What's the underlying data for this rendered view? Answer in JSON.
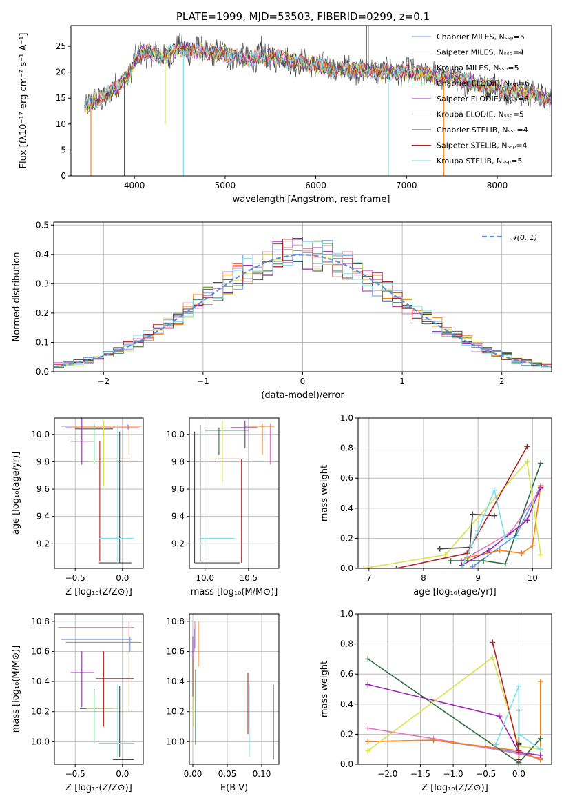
{
  "figure_title": "PLATE=1999, MJD=53503, FIBERID=0299, z=0.1",
  "series_colors": [
    "#6495ED",
    "#E377C2",
    "#FF7F0E",
    "#2E6B3E",
    "#9C27B0",
    "#D6E34A",
    "#444444",
    "#B22222",
    "#7FDDE6"
  ],
  "chart_data": [
    {
      "id": "spectrum",
      "type": "line",
      "title": "PLATE=1999, MJD=53503, FIBERID=0299, z=0.1",
      "xlabel": "wavelength [Angstrom, rest frame]",
      "ylabel": "Flux [fλ10⁻¹⁷ erg cm⁻² s⁻¹ A⁻¹]",
      "xlim": [
        3300,
        8600
      ],
      "ylim": [
        0,
        29
      ],
      "xticks": [
        "4000",
        "5000",
        "6000",
        "7000",
        "8000"
      ],
      "yticks": [
        "0",
        "5",
        "10",
        "15",
        "20",
        "25"
      ],
      "legend_position": "top-right",
      "legend": [
        "Chabrier MILES, N_SSP=5",
        "Salpeter MILES, N_SSP=4",
        "Kroupa MILES, N_SSP=5",
        "Chabrier ELODIE, N_SSP=6",
        "Salpeter ELODIE, N_SSP=6",
        "Kroupa ELODIE, N_SSP=5",
        "Chabrier STELIB, N_SSP=4",
        "Salpeter STELIB, N_SSP=4",
        "Kroupa STELIB, N_SSP=5"
      ],
      "continuum": [
        [
          3450,
          13.5
        ],
        [
          3600,
          14.5
        ],
        [
          3800,
          17
        ],
        [
          3950,
          19.5
        ],
        [
          4000,
          22
        ],
        [
          4100,
          24
        ],
        [
          4300,
          23
        ],
        [
          4500,
          24.5
        ],
        [
          4800,
          24
        ],
        [
          5000,
          23.5
        ],
        [
          5200,
          22.5
        ],
        [
          5500,
          23
        ],
        [
          5800,
          22
        ],
        [
          6000,
          21.5
        ],
        [
          6200,
          20.5
        ],
        [
          6500,
          20.5
        ],
        [
          6800,
          20
        ],
        [
          7000,
          20
        ],
        [
          7300,
          19.5
        ],
        [
          7600,
          18.5
        ],
        [
          8000,
          17
        ],
        [
          8300,
          16
        ],
        [
          8600,
          15
        ]
      ],
      "dropouts": [
        [
          3520,
          0
        ],
        [
          3890,
          0
        ],
        [
          4340,
          10
        ],
        [
          4540,
          0
        ],
        [
          6800,
          0
        ],
        [
          7410,
          0
        ]
      ],
      "spikes": [
        [
          5400,
          27
        ],
        [
          6560,
          29
        ],
        [
          6580,
          29
        ]
      ]
    },
    {
      "id": "residual-histogram",
      "type": "histogram",
      "xlabel": "(data-model)/error",
      "ylabel": "Normed distribution",
      "xlim": [
        -2.5,
        2.5
      ],
      "ylim": [
        0,
        0.51
      ],
      "xticks": [
        "−2",
        "−1",
        "0",
        "1",
        "2"
      ],
      "yticks": [
        "0.0",
        "0.1",
        "0.2",
        "0.3",
        "0.4",
        "0.5"
      ],
      "bin_width": 0.1,
      "reference_curve": "gaussian mean 0 sigma 1",
      "legend": [
        "𝒩(0, 1)"
      ],
      "legend_position": "top-right"
    },
    {
      "id": "age-vs-Z",
      "type": "errorbar",
      "xlabel": "Z [log₁₀(Z/Z⊙)]",
      "ylabel": "age  [log₁₀(age/yr)]",
      "xlim": [
        -0.72,
        0.22
      ],
      "ylim": [
        9.02,
        10.12
      ],
      "xticks": [
        "−0.5",
        "0.0"
      ],
      "yticks": [
        "9.2",
        "9.4",
        "9.6",
        "9.8",
        "10.0"
      ],
      "points": [
        {
          "x": 0.05,
          "y": 10.06,
          "xlo": -0.65,
          "xhi": 0.2,
          "ylo": 10.04,
          "yhi": 10.08
        },
        {
          "x": 0.06,
          "y": 10.05,
          "xlo": -0.6,
          "xhi": 0.18,
          "ylo": 10.03,
          "yhi": 10.07
        },
        {
          "x": 0.07,
          "y": 10.06,
          "xlo": -0.55,
          "xhi": 0.2,
          "ylo": 9.85,
          "yhi": 10.08
        },
        {
          "x": -0.3,
          "y": 10.04,
          "xlo": -0.5,
          "xhi": -0.1,
          "ylo": 9.78,
          "yhi": 10.08
        },
        {
          "x": -0.43,
          "y": 9.95,
          "xlo": -0.55,
          "xhi": -0.3,
          "ylo": 9.78,
          "yhi": 10.12
        },
        {
          "x": -0.2,
          "y": 9.8,
          "xlo": -0.35,
          "xhi": -0.05,
          "ylo": 9.62,
          "yhi": 10.1
        },
        {
          "x": -0.03,
          "y": 9.06,
          "xlo": -0.25,
          "xhi": 0.1,
          "ylo": 9.06,
          "yhi": 10.02
        },
        {
          "x": -0.24,
          "y": 9.82,
          "xlo": -0.24,
          "xhi": 0.08,
          "ylo": 9.07,
          "yhi": 9.95
        },
        {
          "x": -0.05,
          "y": 9.24,
          "xlo": -0.25,
          "xhi": 0.12,
          "ylo": 9.05,
          "yhi": 10.07
        }
      ]
    },
    {
      "id": "age-vs-mass",
      "type": "errorbar",
      "xlabel": "mass [log₁₀(M/M⊙)]",
      "xlim": [
        9.82,
        10.85
      ],
      "ylim": [
        9.02,
        10.12
      ],
      "xticks": [
        "10.0",
        "10.5"
      ],
      "yticks": [
        "9.2",
        "9.4",
        "9.6",
        "9.8",
        "10.0"
      ],
      "points": [
        {
          "x": 10.68,
          "y": 10.06,
          "xlo": 10.45,
          "xhi": 10.78,
          "ylo": 9.95,
          "yhi": 10.08
        },
        {
          "x": 10.75,
          "y": 10.06,
          "xlo": 10.6,
          "xhi": 10.77,
          "ylo": 9.78,
          "yhi": 10.08
        },
        {
          "x": 10.66,
          "y": 10.06,
          "xlo": 10.5,
          "xhi": 10.8,
          "ylo": 9.85,
          "yhi": 10.08
        },
        {
          "x": 10.16,
          "y": 10.03,
          "xlo": 10.0,
          "xhi": 10.5,
          "ylo": 9.85,
          "yhi": 10.05
        },
        {
          "x": 10.46,
          "y": 10.05,
          "xlo": 10.3,
          "xhi": 10.6,
          "ylo": 9.9,
          "yhi": 10.1
        },
        {
          "x": 10.2,
          "y": 9.82,
          "xlo": 10.05,
          "xhi": 10.35,
          "ylo": 9.65,
          "yhi": 10.1
        },
        {
          "x": 9.88,
          "y": 9.06,
          "xlo": 9.88,
          "xhi": 10.4,
          "ylo": 9.06,
          "yhi": 10.02
        },
        {
          "x": 10.42,
          "y": 9.82,
          "xlo": 10.12,
          "xhi": 10.45,
          "ylo": 9.06,
          "yhi": 9.82
        },
        {
          "x": 9.95,
          "y": 9.24,
          "xlo": 9.95,
          "xhi": 10.34,
          "ylo": 9.06,
          "yhi": 10.07
        }
      ]
    },
    {
      "id": "weight-vs-age",
      "type": "line",
      "xlabel": "age  [log₁₀(age/yr)]",
      "ylabel": "mass weight",
      "xlim": [
        6.8,
        10.35
      ],
      "ylim": [
        0,
        1
      ],
      "xticks": [
        "7",
        "8",
        "9",
        "10"
      ],
      "yticks": [
        "0.0",
        "0.2",
        "0.4",
        "0.6",
        "0.8",
        "1.0"
      ],
      "series": [
        {
          "values": [
            [
              8.9,
              0.01
            ],
            [
              9.7,
              0.22
            ],
            [
              10.15,
              0.55
            ]
          ]
        },
        {
          "values": [
            [
              8.7,
              0.05
            ],
            [
              9.6,
              0.24
            ],
            [
              10.15,
              0.53
            ]
          ]
        },
        {
          "values": [
            [
              8.8,
              0.07
            ],
            [
              9.4,
              0.12
            ],
            [
              9.8,
              0.1
            ],
            [
              10.0,
              0.15
            ],
            [
              10.15,
              0.55
            ]
          ]
        },
        {
          "values": [
            [
              8.5,
              0.05
            ],
            [
              9.1,
              0.05
            ],
            [
              9.5,
              0.03
            ],
            [
              10.15,
              0.7
            ]
          ]
        },
        {
          "values": [
            [
              8.7,
              0.02
            ],
            [
              9.2,
              0.12
            ],
            [
              9.9,
              0.32
            ],
            [
              10.15,
              0.54
            ]
          ]
        },
        {
          "values": [
            [
              6.9,
              0.0
            ],
            [
              8.4,
              0.09
            ],
            [
              9.9,
              0.71
            ],
            [
              10.15,
              0.09
            ]
          ]
        },
        {
          "values": [
            [
              8.3,
              0.13
            ],
            [
              8.85,
              0.14
            ],
            [
              8.9,
              0.36
            ],
            [
              9.3,
              0.35
            ]
          ]
        },
        {
          "values": [
            [
              7.5,
              0.0
            ],
            [
              8.8,
              0.1
            ],
            [
              9.9,
              0.81
            ]
          ]
        },
        {
          "values": [
            [
              8.7,
              0.0
            ],
            [
              9.0,
              0.25
            ],
            [
              9.3,
              0.52
            ],
            [
              9.5,
              0.2
            ],
            [
              9.7,
              0.2
            ]
          ]
        }
      ]
    },
    {
      "id": "mass-vs-Z",
      "type": "errorbar",
      "xlabel": "Z [log₁₀(Z/Z⊙)]",
      "ylabel": "mass [log₁₀(M/M⊙)]",
      "xlim": [
        -0.72,
        0.22
      ],
      "ylim": [
        9.85,
        10.85
      ],
      "xticks": [
        "−0.5",
        "0.0"
      ],
      "yticks": [
        "10.0",
        "10.2",
        "10.4",
        "10.6",
        "10.8"
      ],
      "points": [
        {
          "x": 0.08,
          "y": 10.68,
          "xlo": -0.65,
          "xhi": 0.1,
          "ylo": 10.6,
          "yhi": 10.7
        },
        {
          "x": 0.07,
          "y": 10.76,
          "xlo": -0.68,
          "xhi": 0.12,
          "ylo": 10.7,
          "yhi": 10.8
        },
        {
          "x": 0.07,
          "y": 10.66,
          "xlo": -0.6,
          "xhi": 0.2,
          "ylo": 10.2,
          "yhi": 10.8
        },
        {
          "x": -0.3,
          "y": 10.22,
          "xlo": -0.45,
          "xhi": -0.1,
          "ylo": 9.98,
          "yhi": 10.35
        },
        {
          "x": -0.43,
          "y": 10.46,
          "xlo": -0.55,
          "xhi": -0.3,
          "ylo": 10.23,
          "yhi": 10.6
        },
        {
          "x": -0.2,
          "y": 10.22,
          "xlo": -0.38,
          "xhi": -0.05,
          "ylo": 10.12,
          "yhi": 10.48
        },
        {
          "x": -0.03,
          "y": 9.88,
          "xlo": -0.1,
          "xhi": 0.12,
          "ylo": 9.9,
          "yhi": 10.37
        },
        {
          "x": -0.2,
          "y": 10.42,
          "xlo": -0.28,
          "xhi": 0.12,
          "ylo": 10.1,
          "yhi": 10.6
        },
        {
          "x": -0.05,
          "y": 9.99,
          "xlo": -0.25,
          "xhi": 0.12,
          "ylo": 9.9,
          "yhi": 10.38
        }
      ]
    },
    {
      "id": "mass-vs-EBV",
      "type": "errorbar",
      "xlabel": "E(B-V)",
      "xlim": [
        -0.005,
        0.125
      ],
      "ylim": [
        9.85,
        10.85
      ],
      "xticks": [
        "0.00",
        "0.05",
        "0.10"
      ],
      "yticks": [
        "10.0",
        "10.2",
        "10.4",
        "10.6",
        "10.8"
      ],
      "points": [
        {
          "x": 0.002,
          "y": 10.68,
          "ylo": 10.6,
          "yhi": 10.75
        },
        {
          "x": 0.003,
          "y": 10.76,
          "ylo": 10.62,
          "yhi": 10.8
        },
        {
          "x": 0.008,
          "y": 10.66,
          "ylo": 10.5,
          "yhi": 10.8
        },
        {
          "x": 0.004,
          "y": 10.22,
          "ylo": 9.98,
          "yhi": 10.48
        },
        {
          "x": 0.0,
          "y": 10.46,
          "ylo": 10.3,
          "yhi": 10.7
        },
        {
          "x": 0.001,
          "y": 10.22,
          "ylo": 10.1,
          "yhi": 10.55
        },
        {
          "x": 0.117,
          "y": 9.88,
          "ylo": 9.88,
          "yhi": 10.38
        },
        {
          "x": 0.08,
          "y": 10.42,
          "ylo": 10.05,
          "yhi": 10.46
        },
        {
          "x": 0.082,
          "y": 9.99,
          "ylo": 9.9,
          "yhi": 10.38
        }
      ]
    },
    {
      "id": "weight-vs-Z",
      "type": "line",
      "xlabel": "Z [log₁₀(Z/Z⊙)]",
      "ylabel": "mass weight",
      "xlim": [
        -2.45,
        0.5
      ],
      "ylim": [
        0,
        1
      ],
      "xticks": [
        "−2.0",
        "−1.5",
        "−1.0",
        "−0.5",
        "0.0"
      ],
      "yticks": [
        "0.0",
        "0.2",
        "0.4",
        "0.6",
        "0.8",
        "1.0"
      ],
      "series": [
        {
          "values": [
            [
              -2.3,
              0.15
            ],
            [
              -1.3,
              0.16
            ],
            [
              0.0,
              0.08
            ],
            [
              0.33,
              0.03
            ]
          ]
        },
        {
          "values": [
            [
              -2.3,
              0.24
            ],
            [
              -1.3,
              0.17
            ],
            [
              0.0,
              0.07
            ],
            [
              0.33,
              0.04
            ]
          ]
        },
        {
          "values": [
            [
              -2.3,
              0.15
            ],
            [
              -1.3,
              0.16
            ],
            [
              0.0,
              0.09
            ],
            [
              0.33,
              0.03
            ],
            [
              0.33,
              0.55
            ]
          ]
        },
        {
          "values": [
            [
              -2.3,
              0.7
            ],
            [
              0.0,
              0.01
            ],
            [
              0.33,
              0.17
            ]
          ]
        },
        {
          "values": [
            [
              -2.3,
              0.53
            ],
            [
              -0.3,
              0.32
            ],
            [
              0.0,
              0.08
            ],
            [
              0.33,
              0.06
            ]
          ]
        },
        {
          "values": [
            [
              -2.3,
              0.09
            ],
            [
              -0.4,
              0.71
            ],
            [
              0.0,
              0.12
            ],
            [
              0.33,
              0.1
            ]
          ]
        },
        {
          "values": [
            [
              0.0,
              0.36
            ],
            [
              0.0,
              0.14
            ],
            [
              0.0,
              0.13
            ]
          ]
        },
        {
          "values": [
            [
              -0.4,
              0.81
            ],
            [
              0.0,
              0.09
            ],
            [
              0.0,
              0.03
            ]
          ]
        },
        {
          "values": [
            [
              -0.35,
              0.13
            ],
            [
              0.0,
              0.52
            ],
            [
              0.0,
              0.2
            ],
            [
              0.33,
              0.1
            ]
          ]
        }
      ]
    }
  ]
}
